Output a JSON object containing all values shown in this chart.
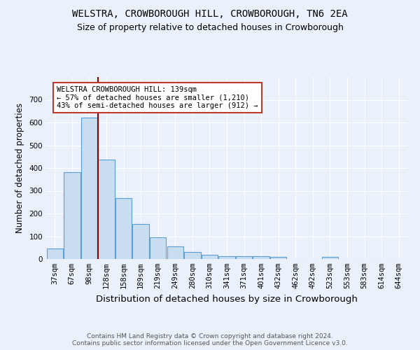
{
  "title1": "WELSTRA, CROWBOROUGH HILL, CROWBOROUGH, TN6 2EA",
  "title2": "Size of property relative to detached houses in Crowborough",
  "xlabel": "Distribution of detached houses by size in Crowborough",
  "ylabel": "Number of detached properties",
  "categories": [
    "37sqm",
    "67sqm",
    "98sqm",
    "128sqm",
    "158sqm",
    "189sqm",
    "219sqm",
    "249sqm",
    "280sqm",
    "310sqm",
    "341sqm",
    "371sqm",
    "401sqm",
    "432sqm",
    "462sqm",
    "492sqm",
    "523sqm",
    "553sqm",
    "583sqm",
    "614sqm",
    "644sqm"
  ],
  "values": [
    47,
    383,
    622,
    437,
    267,
    153,
    96,
    54,
    30,
    20,
    11,
    12,
    13,
    8,
    0,
    0,
    8,
    0,
    0,
    0,
    0
  ],
  "bar_color": "#c9ddf0",
  "bar_edge_color": "#5a9fd4",
  "vline_x_idx": 2.5,
  "vline_color": "#8b0000",
  "annotation_text": "WELSTRA CROWBOROUGH HILL: 139sqm\n← 57% of detached houses are smaller (1,210)\n43% of semi-detached houses are larger (912) →",
  "annotation_box_color": "white",
  "annotation_edge_color": "#c0392b",
  "ylim": [
    0,
    800
  ],
  "yticks": [
    0,
    100,
    200,
    300,
    400,
    500,
    600,
    700
  ],
  "footer_text": "Contains HM Land Registry data © Crown copyright and database right 2024.\nContains public sector information licensed under the Open Government Licence v3.0.",
  "background_color": "#eaf1fb",
  "plot_bg_color": "#eaf1fb",
  "grid_color": "#ffffff",
  "title1_fontsize": 10,
  "title2_fontsize": 9,
  "xlabel_fontsize": 9.5,
  "ylabel_fontsize": 8.5,
  "tick_fontsize": 7.5,
  "annot_fontsize": 7.5,
  "footer_fontsize": 6.5
}
